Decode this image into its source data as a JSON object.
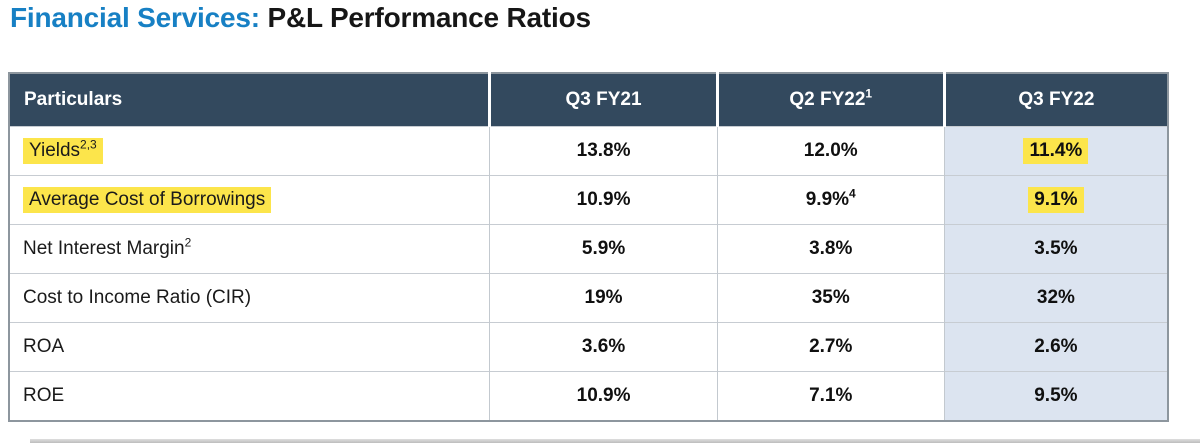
{
  "title": {
    "prefix": "Financial Services: ",
    "main": "P&L Performance Ratios"
  },
  "colors": {
    "title_blue": "#1780C4",
    "header_bg": "#33495E",
    "header_text": "#FFFFFF",
    "highlight_yellow": "#FCE54B",
    "last_column_bg": "#DCE4F0",
    "outer_border": "#8D969E",
    "row_divider": "#C7CCD2"
  },
  "table": {
    "columns": [
      {
        "label": "Particulars",
        "sup": ""
      },
      {
        "label": "Q3 FY21",
        "sup": ""
      },
      {
        "label": "Q2 FY22",
        "sup": "1"
      },
      {
        "label": "Q3 FY22",
        "sup": ""
      }
    ],
    "rows": [
      {
        "label": "Yields",
        "label_sup": "2,3",
        "label_highlight": true,
        "values": [
          {
            "text": "13.8%"
          },
          {
            "text": "12.0%"
          },
          {
            "text": "11.4%",
            "highlight": true
          }
        ]
      },
      {
        "label": "Average Cost of Borrowings",
        "label_sup": "",
        "label_highlight": true,
        "values": [
          {
            "text": "10.9%"
          },
          {
            "text": "9.9%",
            "sup": "4"
          },
          {
            "text": "9.1%",
            "highlight": true
          }
        ]
      },
      {
        "label": "Net Interest Margin",
        "label_sup": "2",
        "label_highlight": false,
        "values": [
          {
            "text": "5.9%"
          },
          {
            "text": "3.8%"
          },
          {
            "text": "3.5%"
          }
        ]
      },
      {
        "label": "Cost to Income Ratio (CIR)",
        "label_sup": "",
        "label_highlight": false,
        "values": [
          {
            "text": "19%"
          },
          {
            "text": "35%"
          },
          {
            "text": "32%"
          }
        ]
      },
      {
        "label": "ROA",
        "label_sup": "",
        "label_highlight": false,
        "values": [
          {
            "text": "3.6%"
          },
          {
            "text": "2.7%"
          },
          {
            "text": "2.6%"
          }
        ]
      },
      {
        "label": "ROE",
        "label_sup": "",
        "label_highlight": false,
        "values": [
          {
            "text": "10.9%"
          },
          {
            "text": "7.1%"
          },
          {
            "text": "9.5%"
          }
        ]
      }
    ]
  },
  "chart_data": {
    "type": "table",
    "title": "Financial Services: P&L Performance Ratios",
    "categories": [
      "Q3 FY21",
      "Q2 FY22",
      "Q3 FY22"
    ],
    "series": [
      {
        "name": "Yields",
        "values": [
          13.8,
          12.0,
          11.4
        ],
        "unit": "%"
      },
      {
        "name": "Average Cost of Borrowings",
        "values": [
          10.9,
          9.9,
          9.1
        ],
        "unit": "%"
      },
      {
        "name": "Net Interest Margin",
        "values": [
          5.9,
          3.8,
          3.5
        ],
        "unit": "%"
      },
      {
        "name": "Cost to Income Ratio (CIR)",
        "values": [
          19,
          35,
          32
        ],
        "unit": "%"
      },
      {
        "name": "ROA",
        "values": [
          3.6,
          2.7,
          2.6
        ],
        "unit": "%"
      },
      {
        "name": "ROE",
        "values": [
          10.9,
          7.1,
          9.5
        ],
        "unit": "%"
      }
    ]
  }
}
